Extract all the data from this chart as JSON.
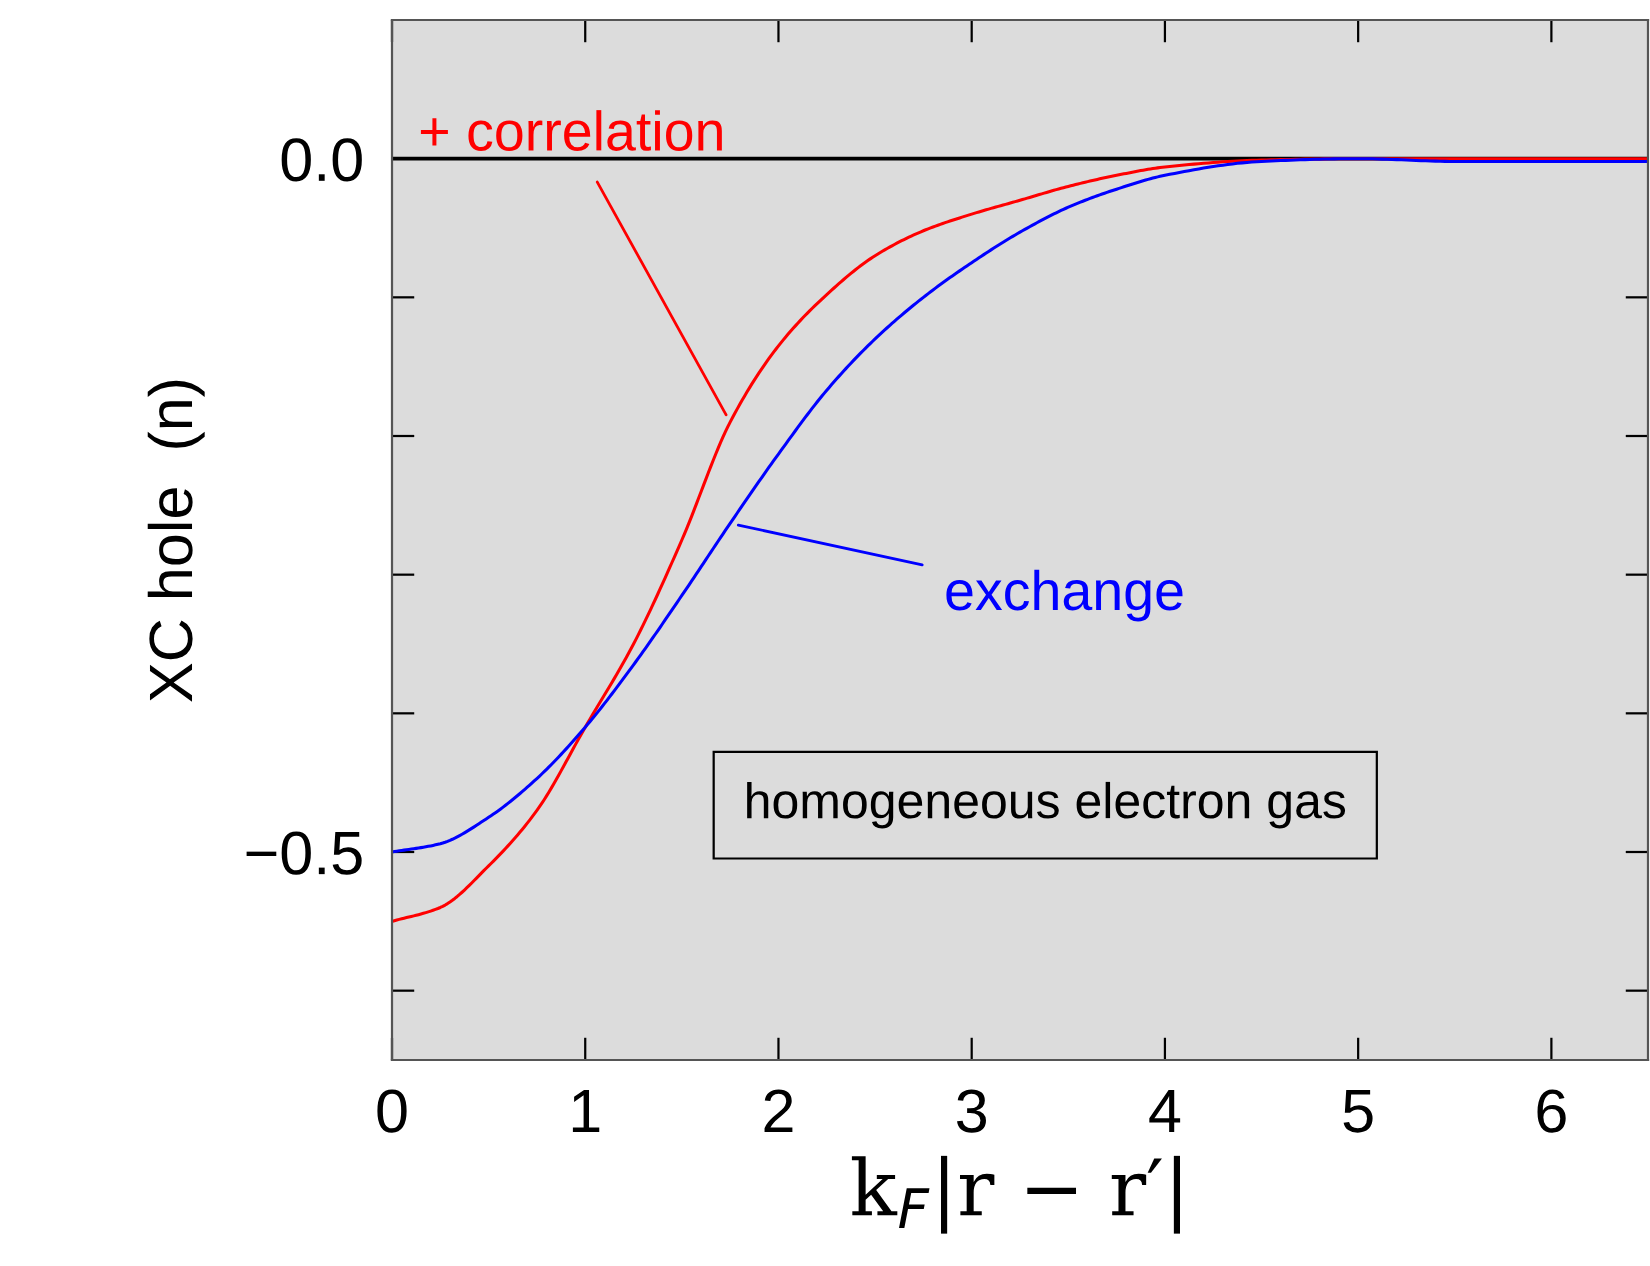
{
  "chart_data": {
    "type": "line",
    "xlabel": "k$_{F}$|r − r′|",
    "ylabel": "XC hole  (n)",
    "x": [
      0,
      0.25,
      0.5,
      0.75,
      1,
      1.25,
      1.5,
      1.75,
      2,
      2.25,
      2.5,
      2.75,
      3,
      3.25,
      3.5,
      3.75,
      4,
      4.5,
      5,
      5.5,
      6,
      6.5
    ],
    "series": [
      {
        "color": "#ff0000",
        "values": [
          -0.55,
          -0.54,
          -0.51,
          -0.47,
          -0.41,
          -0.35,
          -0.275,
          -0.19,
          -0.135,
          -0.098,
          -0.07,
          -0.052,
          -0.04,
          -0.03,
          -0.02,
          -0.012,
          -0.006,
          -0.001,
          0,
          0,
          0,
          0
        ]
      },
      {
        "color": "#0000ff",
        "values": [
          -0.5,
          -0.494,
          -0.475,
          -0.447,
          -0.41,
          -0.365,
          -0.315,
          -0.263,
          -0.213,
          -0.167,
          -0.13,
          -0.1,
          -0.075,
          -0.053,
          -0.035,
          -0.022,
          -0.012,
          -0.002,
          0,
          -0.002,
          -0.002,
          -0.002
        ]
      }
    ],
    "annotations": [
      {
        "text": "+ correlation",
        "x": 1.75,
        "y": -0.19
      },
      {
        "text": "exchange",
        "x": 1.75,
        "y": -0.263
      },
      "homogeneous electron gas"
    ],
    "ref_lines": [
      {
        "axis": "y",
        "value": 0,
        "color": "#000000"
      }
    ],
    "xlim": [
      0,
      6.5
    ],
    "ylim": [
      -0.65,
      0.1
    ],
    "xticks": [
      0,
      1,
      2,
      3,
      4,
      5,
      6
    ],
    "yticks": [
      {
        "value": 0,
        "label": "0.0"
      },
      {
        "value": -0.1,
        "label": null
      },
      {
        "value": -0.2,
        "label": null
      },
      {
        "value": -0.3,
        "label": null
      },
      {
        "value": -0.4,
        "label": null
      },
      {
        "value": -0.5,
        "label": "−0.5"
      },
      {
        "value": -0.6,
        "label": null
      }
    ],
    "grid": false,
    "legend": false,
    "marker": "none",
    "line_style": "solid"
  }
}
